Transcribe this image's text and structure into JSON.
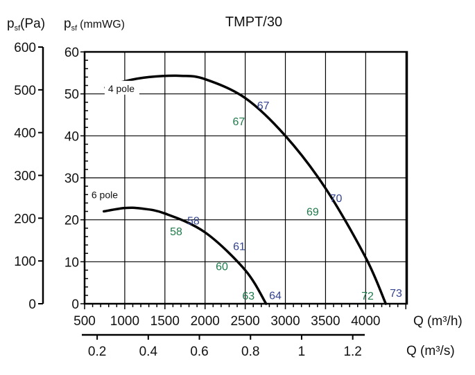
{
  "chart_data": {
    "type": "line",
    "title": "TMPT/30",
    "y_label_pa": {
      "main": "p",
      "sub": "sf",
      "unit": "(Pa)"
    },
    "y_label_mm": {
      "main": "p",
      "sub": "sf",
      "unit": "(mmWG)"
    },
    "xlabel": "Q (m³/h)",
    "xlabel2": "Q (m³/s)",
    "xlim": [
      500,
      4515
    ],
    "ylim": [
      0,
      60
    ],
    "ylim_pa": [
      0,
      600
    ],
    "x2lim": [
      0.14,
      1.247
    ],
    "x_ticks": [
      "500",
      "1000",
      "1500",
      "2000",
      "2500",
      "3000",
      "3500",
      "4000"
    ],
    "y_ticks": [
      "0",
      "10",
      "20",
      "30",
      "40",
      "50",
      "60"
    ],
    "y_pa_ticks": [
      "0",
      "100",
      "200",
      "300",
      "400",
      "500",
      "600"
    ],
    "x2_ticks": [
      "0.2",
      "0.4",
      "0.6",
      "0.8",
      "1",
      "1.2"
    ],
    "grid": true,
    "series": [
      {
        "name": "4 pole",
        "label_at": [
          957,
          51.3
        ],
        "x": [
          760,
          1000,
          1300,
          1700,
          2000,
          2500,
          3000,
          3500,
          4000,
          4250
        ],
        "y": [
          51.5,
          53,
          54,
          54.3,
          53.5,
          49,
          40,
          27.5,
          11,
          0
        ]
      },
      {
        "name": "6 pole",
        "label_at": [
          750,
          26
        ],
        "x": [
          740,
          1000,
          1200,
          1500,
          2000,
          2500,
          2760
        ],
        "y": [
          22,
          22.8,
          22.7,
          21.5,
          17,
          8,
          0
        ]
      }
    ],
    "annotations": [
      {
        "text": "67",
        "color": "blue",
        "at": [
          2725,
          47.3
        ]
      },
      {
        "text": "67",
        "color": "green",
        "at": [
          2420,
          43.5
        ]
      },
      {
        "text": "70",
        "color": "blue",
        "at": [
          3630,
          25.2
        ]
      },
      {
        "text": "69",
        "color": "green",
        "at": [
          3340,
          22
        ]
      },
      {
        "text": "58",
        "color": "blue",
        "at": [
          1855,
          19.9
        ]
      },
      {
        "text": "58",
        "color": "green",
        "at": [
          1640,
          17.3
        ]
      },
      {
        "text": "61",
        "color": "blue",
        "at": [
          2426,
          13.8
        ]
      },
      {
        "text": "60",
        "color": "green",
        "at": [
          2210,
          9
        ]
      },
      {
        "text": "63",
        "color": "green",
        "at": [
          2540,
          2
        ]
      },
      {
        "text": "64",
        "color": "blue",
        "at": [
          2875,
          2.1
        ]
      },
      {
        "text": "72",
        "color": "green",
        "at": [
          4023,
          2
        ]
      },
      {
        "text": "73",
        "color": "blue",
        "at": [
          4377,
          2.6
        ]
      }
    ],
    "colors": {
      "blue": "#34438f",
      "green": "#1f7a4a",
      "curve": "#000000"
    }
  }
}
